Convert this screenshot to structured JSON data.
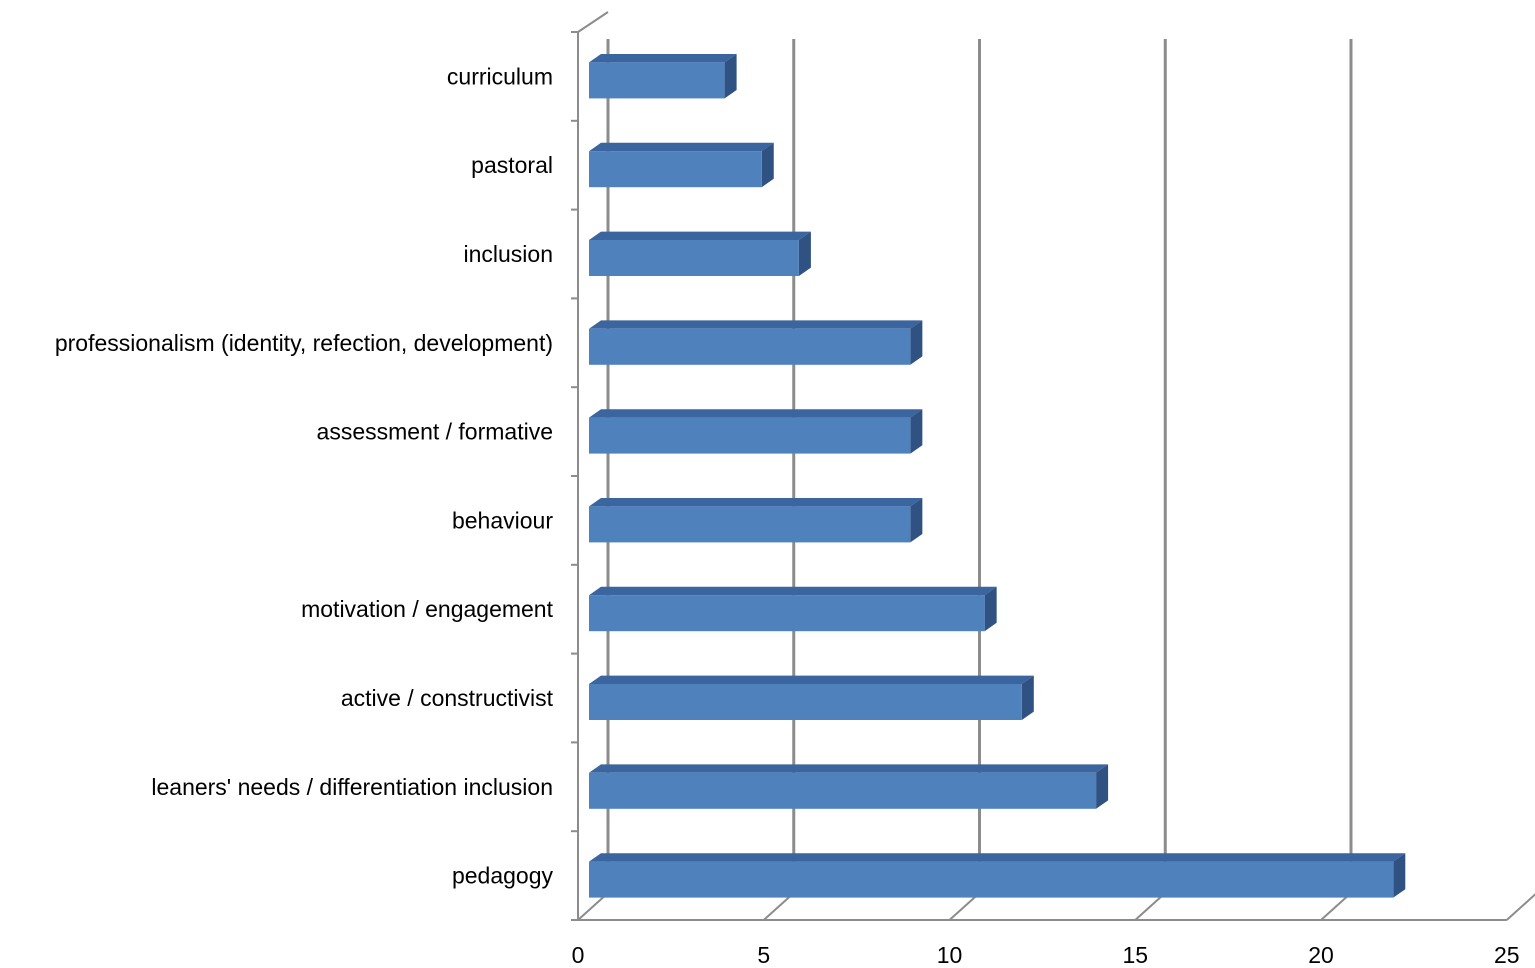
{
  "chart_data": {
    "type": "bar",
    "orientation": "horizontal",
    "style": "3d",
    "categories": [
      "curriculum",
      "pastoral",
      "inclusion",
      "professionalism (identity, refection, development)",
      "assessment / formative",
      "behaviour",
      "motivation / engagement",
      "active / constructivist",
      "leaners' needs / differentiation inclusion",
      "pedagogy"
    ],
    "values": [
      4,
      5,
      6,
      9,
      9,
      9,
      11,
      12,
      14,
      22
    ],
    "x_ticks": [
      0,
      5,
      10,
      15,
      20,
      25
    ],
    "x_tick_labels": [
      "0",
      "5",
      "10",
      "15",
      "20",
      "25"
    ],
    "xlim": [
      0,
      25
    ],
    "grid": true,
    "legend": "none",
    "colors": {
      "bar_front": "#4f81bd",
      "bar_top": "#3a659e",
      "bar_side": "#2f5283",
      "grid": "#8c8c8c"
    }
  }
}
